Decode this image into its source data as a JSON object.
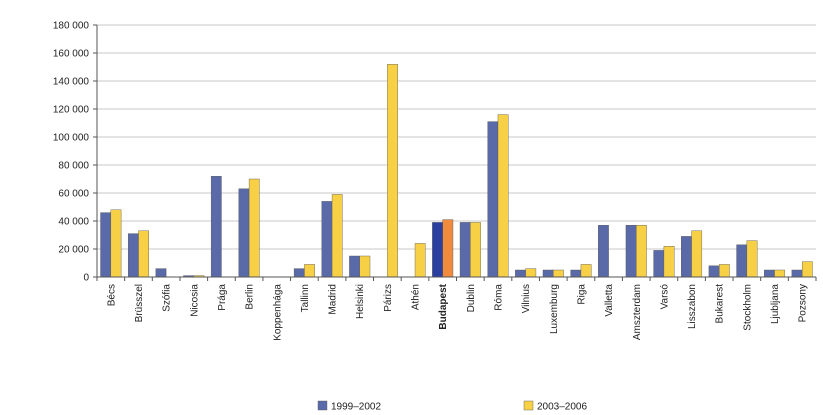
{
  "chart_data": {
    "type": "bar",
    "title": "",
    "xlabel": "",
    "ylabel": "",
    "ylim": [
      0,
      180000
    ],
    "yticks": [
      0,
      20000,
      40000,
      60000,
      80000,
      100000,
      120000,
      140000,
      160000,
      180000
    ],
    "ytick_labels": [
      "0",
      "20 000",
      "40 000",
      "60 000",
      "80 000",
      "100 000",
      "120 000",
      "140 000",
      "160 000",
      "180 000"
    ],
    "grid": true,
    "legend_position": "bottom",
    "categories": [
      "Bécs",
      "Brüsszel",
      "Szófia",
      "Nicosia",
      "Prága",
      "Berlin",
      "Koppenhága",
      "Tallinn",
      "Madrid",
      "Helsinki",
      "Párizs",
      "Athén",
      "Budapest",
      "Dublin",
      "Róma",
      "Vilnius",
      "Luxemburg",
      "Riga",
      "Valletta",
      "Amszterdam",
      "Varsó",
      "Lisszabon",
      "Bukarest",
      "Stockholm",
      "Ljubljana",
      "Pozsony"
    ],
    "highlight_category": "Budapest",
    "series": [
      {
        "name": "1999–2002",
        "color": "#5a6aa8",
        "highlight_color": "#2b3f9e",
        "values": [
          46000,
          31000,
          6000,
          1000,
          72000,
          63000,
          0,
          6000,
          54000,
          15000,
          0,
          0,
          39000,
          39000,
          111000,
          5000,
          5000,
          5000,
          37000,
          37000,
          19000,
          29000,
          8000,
          23000,
          5000,
          5000
        ]
      },
      {
        "name": "2003–2006",
        "color": "#f7d046",
        "highlight_color": "#f08a3c",
        "values": [
          48000,
          33000,
          0,
          1000,
          0,
          70000,
          0,
          9000,
          59000,
          15000,
          152000,
          24000,
          41000,
          39000,
          116000,
          6000,
          5000,
          9000,
          0,
          37000,
          22000,
          33000,
          9000,
          26000,
          5000,
          11000
        ]
      }
    ]
  }
}
